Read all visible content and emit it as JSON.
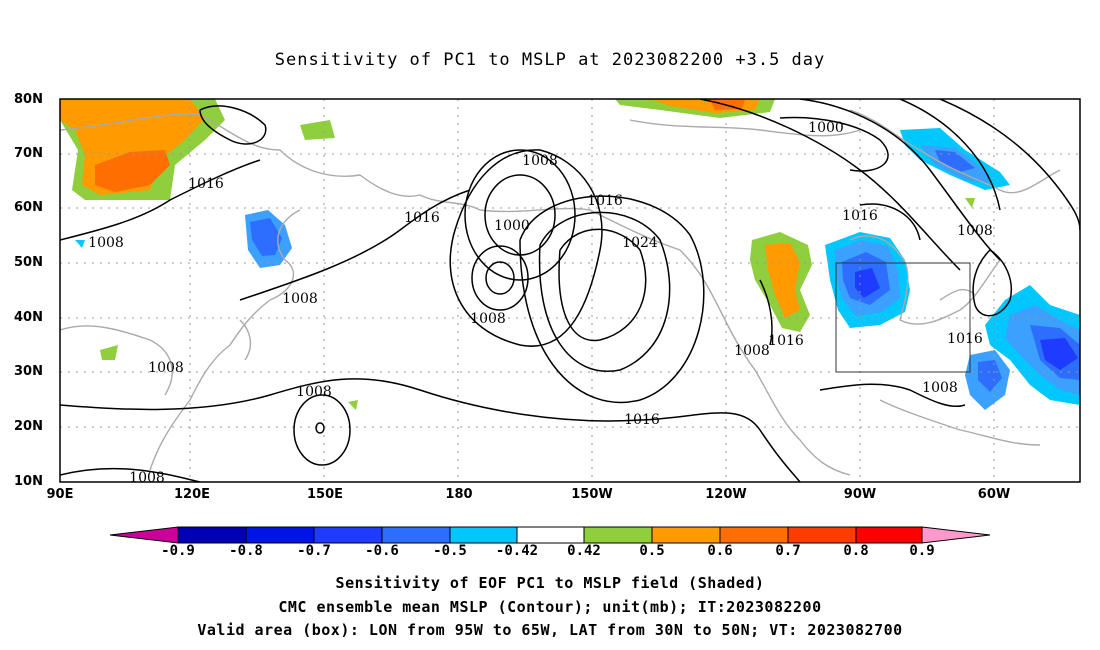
{
  "title": "Sensitivity of PC1 to MSLP at 2023082200 +3.5 day",
  "lat_ticks": [
    "80N",
    "70N",
    "60N",
    "50N",
    "40N",
    "30N",
    "20N",
    "10N"
  ],
  "lon_ticks": [
    "90E",
    "120E",
    "150E",
    "180",
    "150W",
    "120W",
    "90W",
    "60W"
  ],
  "contour_labels": [
    "1016",
    "1008",
    "1008",
    "1008",
    "1008",
    "1008",
    "1008",
    "1000",
    "1008",
    "1016",
    "1024",
    "1016",
    "1008",
    "1016",
    "1000",
    "1016",
    "1008",
    "1016",
    "1008"
  ],
  "colorbar": {
    "labels": [
      "-0.9",
      "-0.8",
      "-0.7",
      "-0.6",
      "-0.5",
      "-0.42",
      "0.42",
      "0.5",
      "0.6",
      "0.7",
      "0.8",
      "0.9"
    ],
    "colors": [
      "#cc0099",
      "#0000b4",
      "#0014e6",
      "#1e3cff",
      "#2e6eff",
      "#3ca0ff",
      "#00c8ff",
      "#ffffff",
      "#8fce3c",
      "#ff9b00",
      "#ff6e00",
      "#ff3c00",
      "#ff0000",
      "#ff99cc"
    ]
  },
  "captions": [
    "Sensitivity of EOF PC1 to MSLP field (Shaded)",
    "CMC ensemble mean MSLP (Contour); unit(mb); IT:2023082200",
    "Valid area (box): LON from 95W to 65W, LAT from 30N to 50N; VT: 2023082700"
  ]
}
